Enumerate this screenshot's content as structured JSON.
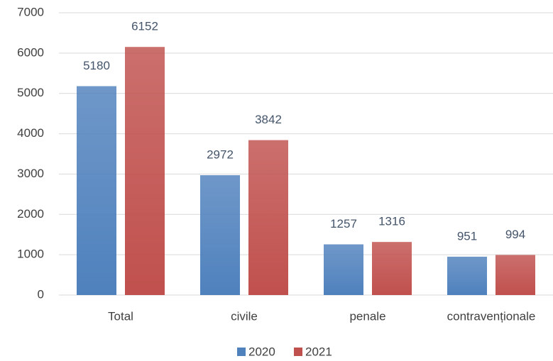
{
  "chart_data": {
    "type": "bar",
    "categories": [
      "Total",
      "civile",
      "penale",
      "contravenționale"
    ],
    "series": [
      {
        "name": "2020",
        "color": "#4f81bd",
        "values": [
          5180,
          2972,
          1257,
          951
        ]
      },
      {
        "name": "2021",
        "color": "#c0504d",
        "values": [
          6152,
          3842,
          1316,
          994
        ]
      }
    ],
    "ylim": [
      0,
      7000
    ],
    "yticks": [
      0,
      1000,
      2000,
      3000,
      4000,
      5000,
      6000,
      7000
    ],
    "grid": true,
    "legend": "bottom"
  }
}
